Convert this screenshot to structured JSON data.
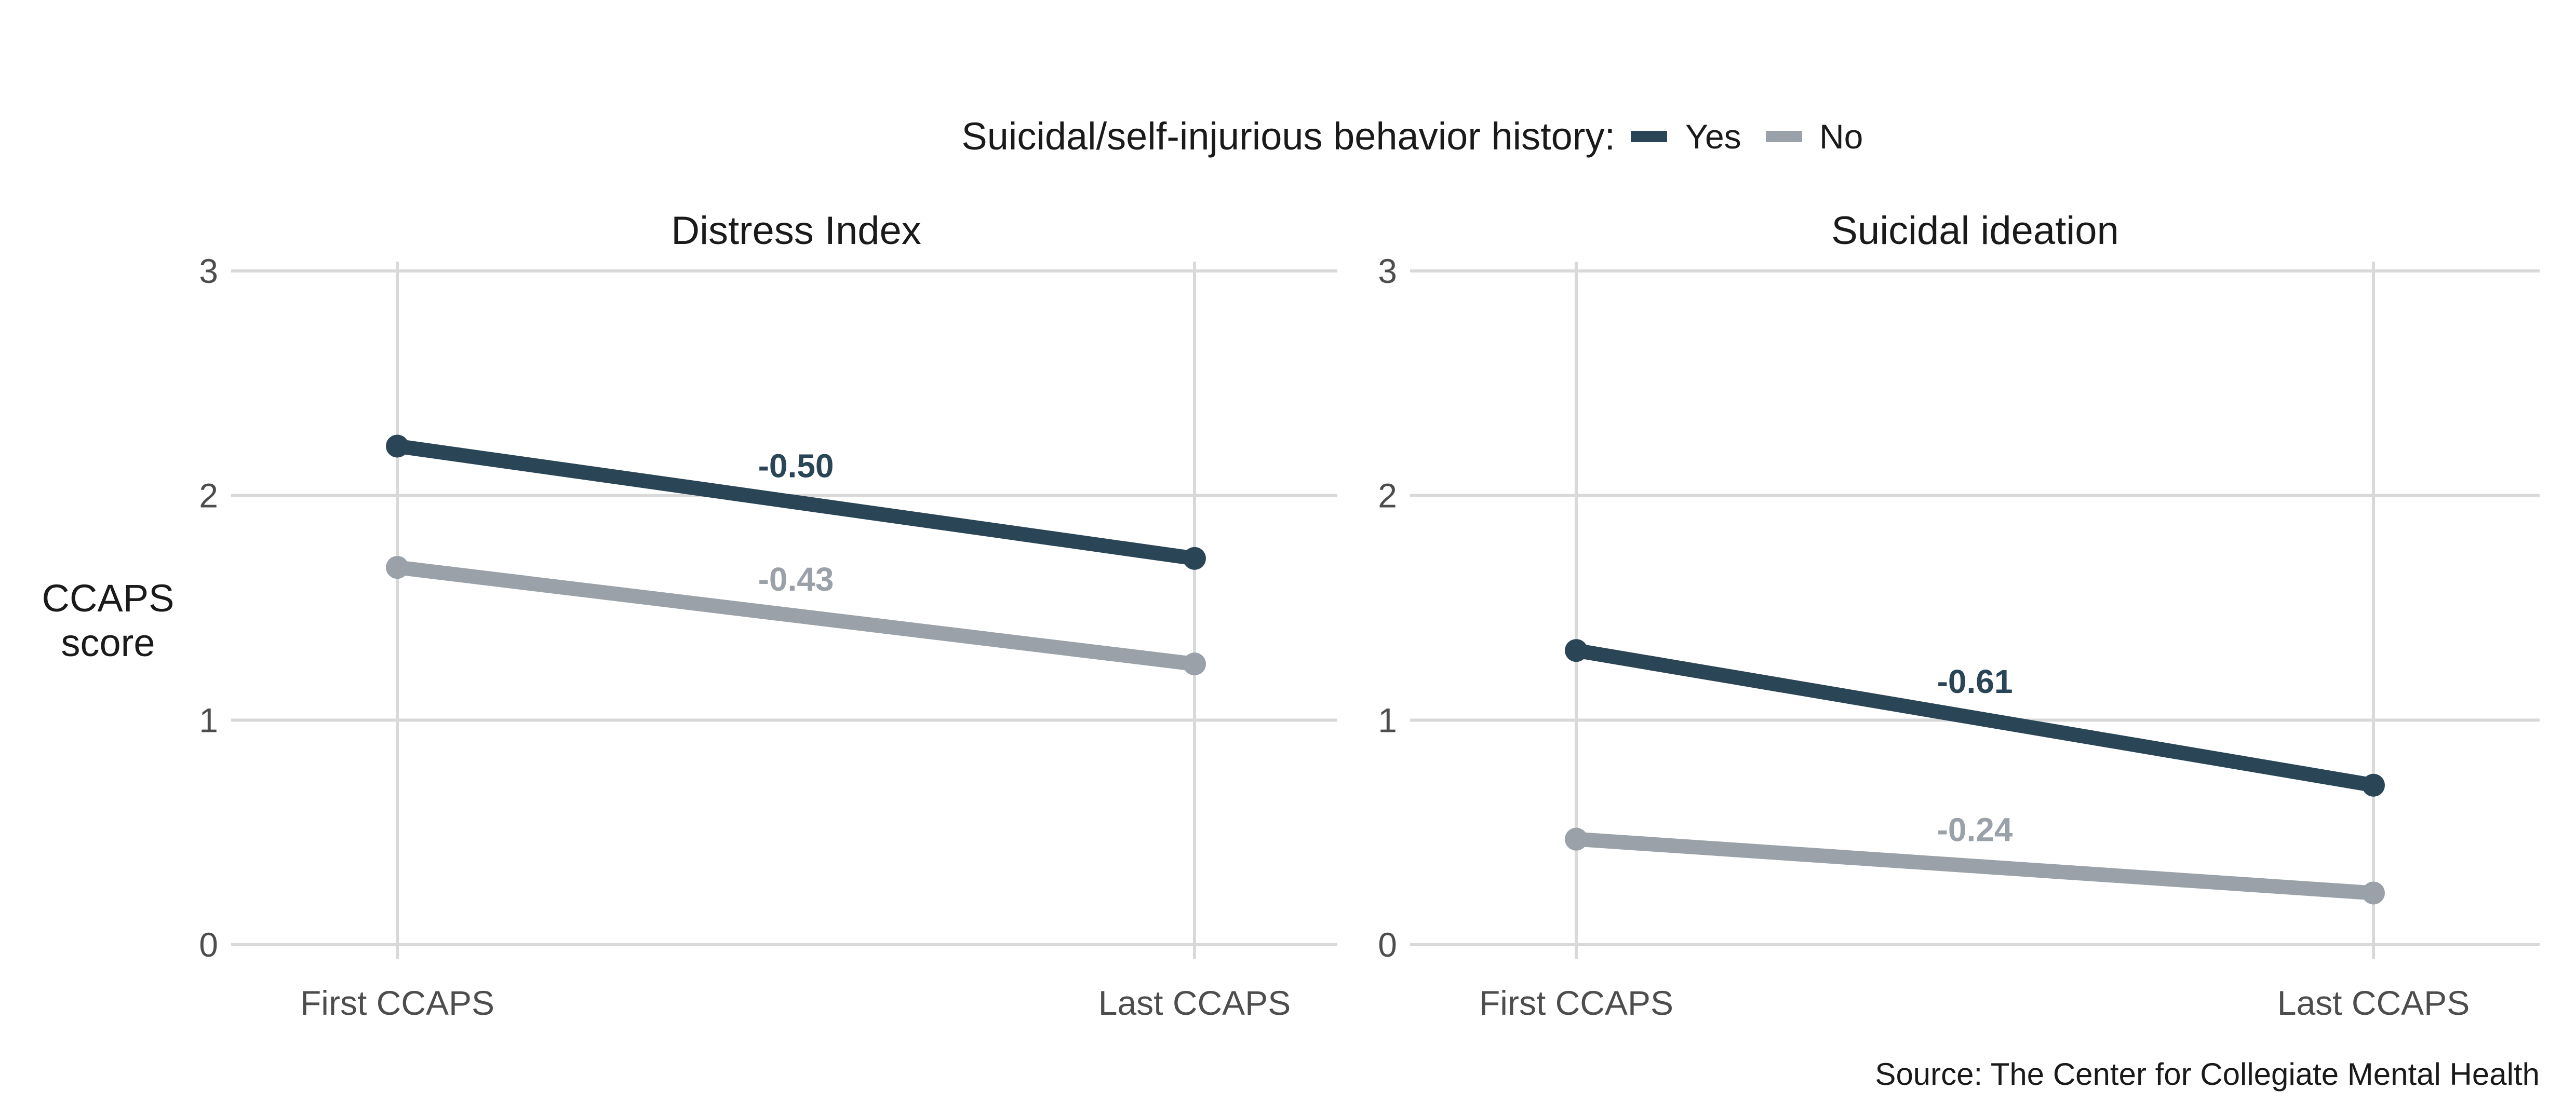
{
  "legend": {
    "title": "Suicidal/self-injurious behavior history:",
    "items": [
      {
        "label": "Yes",
        "color": "#2a4556"
      },
      {
        "label": "No",
        "color": "#9aa1a8"
      }
    ]
  },
  "y_axis_label": [
    "CCAPS",
    "score"
  ],
  "source": "Source: The Center for Collegiate Mental Health",
  "chart_data": [
    {
      "type": "line",
      "title": "Distress Index",
      "ylabel": "CCAPS score",
      "categories": [
        "First CCAPS",
        "Last CCAPS"
      ],
      "ylim": [
        0,
        3
      ],
      "yticks": [
        0,
        1,
        2,
        3
      ],
      "series": [
        {
          "name": "Yes",
          "color": "#2a4556",
          "values": [
            2.22,
            1.72
          ],
          "change_label": "-0.50"
        },
        {
          "name": "No",
          "color": "#9aa1a8",
          "values": [
            1.68,
            1.25
          ],
          "change_label": "-0.43"
        }
      ]
    },
    {
      "type": "line",
      "title": "Suicidal ideation",
      "ylabel": "CCAPS score",
      "categories": [
        "First CCAPS",
        "Last CCAPS"
      ],
      "ylim": [
        0,
        3
      ],
      "yticks": [
        0,
        1,
        2,
        3
      ],
      "series": [
        {
          "name": "Yes",
          "color": "#2a4556",
          "values": [
            1.31,
            0.71
          ],
          "change_label": "-0.61"
        },
        {
          "name": "No",
          "color": "#9aa1a8",
          "values": [
            0.47,
            0.23
          ],
          "change_label": "-0.24"
        }
      ]
    }
  ]
}
